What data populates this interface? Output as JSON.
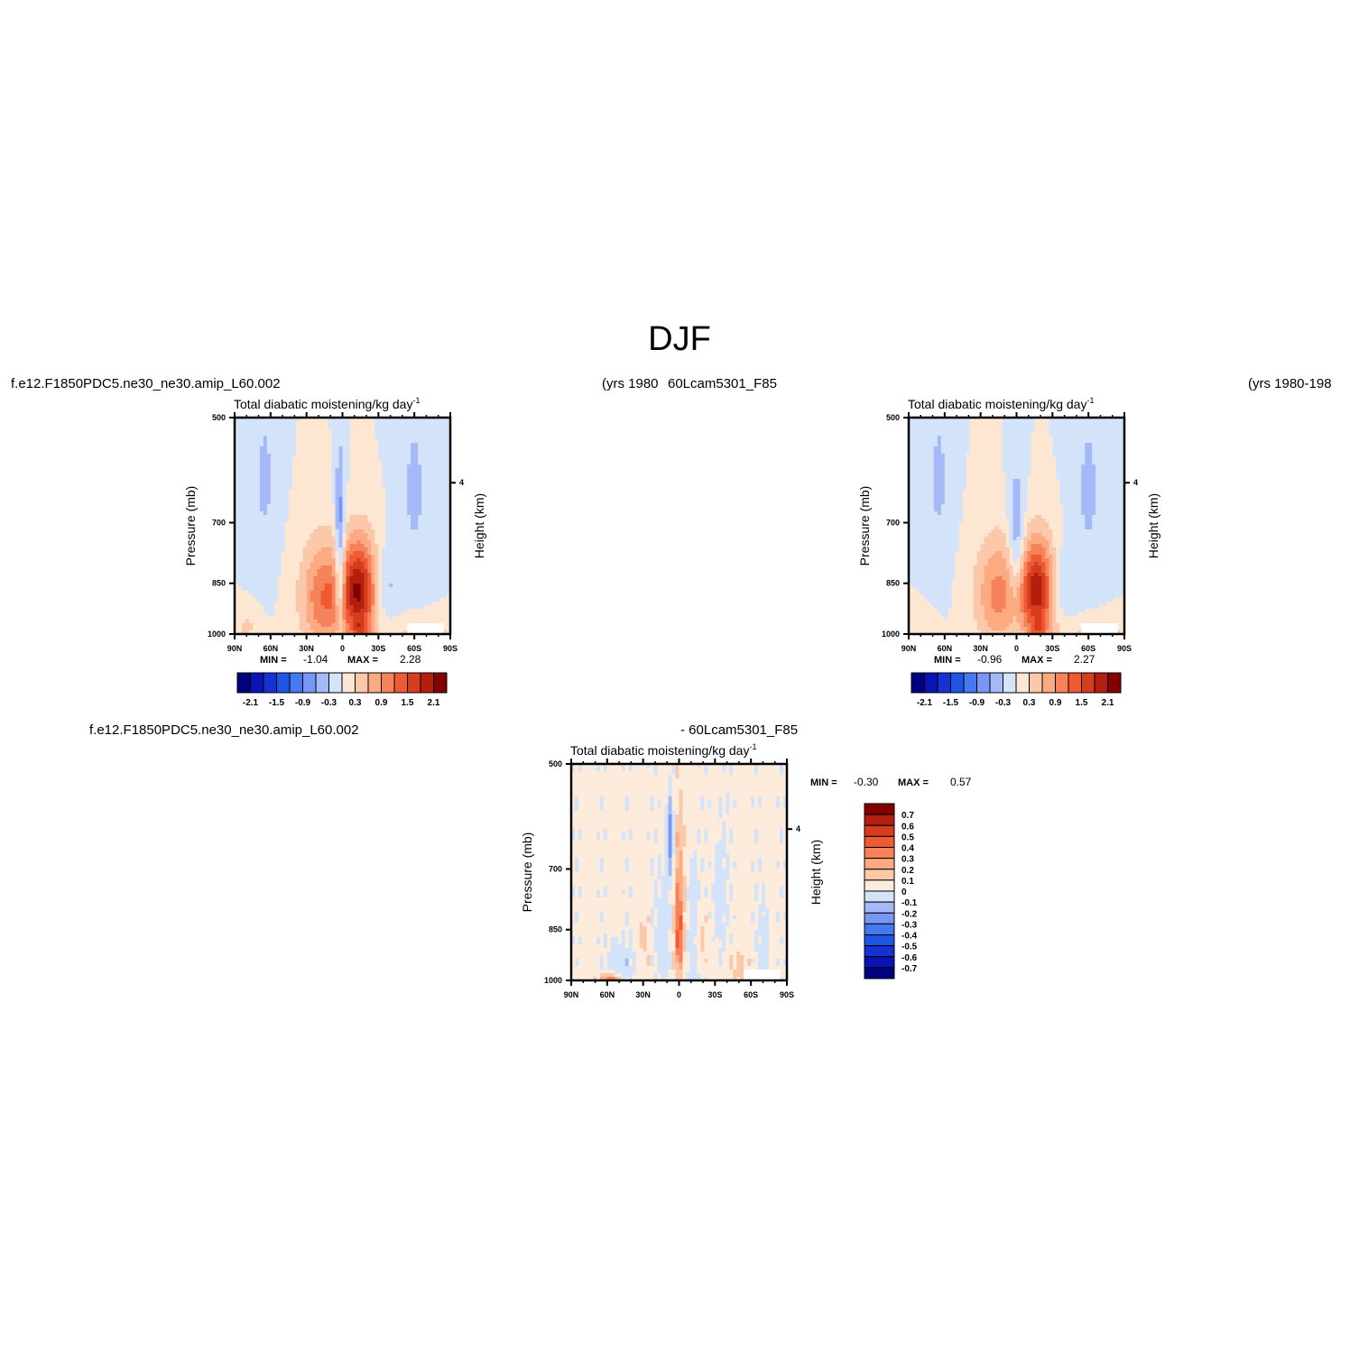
{
  "page": {
    "title": "DJF",
    "top_left_case": "f.e12.F1850PDC5.ne30_ne30.amip_L60.002",
    "top_left_years": "(yrs 1980",
    "top_right_case": "60Lcam5301_F85",
    "top_right_years": "(yrs 1980-198",
    "diff_left_case": "f.e12.F1850PDC5.ne30_ne30.amip_L60.002",
    "diff_right_case": "- 60Lcam5301_F85"
  },
  "colors": {
    "seq": [
      "#000080",
      "#0a14b4",
      "#1433d2",
      "#1e55e6",
      "#4678f0",
      "#7896f5",
      "#a5b9f8",
      "#d2e3fa",
      "#fde6d2",
      "#fcc8aa",
      "#fbaa82",
      "#f5825a",
      "#ef5a32",
      "#d63c1e",
      "#b41e0f",
      "#820000"
    ],
    "diff": [
      "#000080",
      "#0a14b4",
      "#1433d2",
      "#1e55e6",
      "#4678f0",
      "#7896f5",
      "#a5b9f8",
      "#d2e3fa",
      "#fdebdc",
      "#fcc8aa",
      "#fbaa82",
      "#f5825a",
      "#ef5a32",
      "#d63c1e",
      "#b41e0f",
      "#820000"
    ]
  },
  "chart_data": [
    {
      "id": "p1",
      "type": "heatmap",
      "title": "Total diabatic moistening/kg day",
      "title_sup": "-1",
      "xlabel": "",
      "ylabel": "Pressure (mb)",
      "ylabel_right": "Height (km)",
      "x_ticks": [
        "90N",
        "60N",
        "30N",
        "0",
        "30S",
        "60S",
        "90S"
      ],
      "y_ticks": [
        "500",
        "700",
        "850",
        "1000"
      ],
      "y_ticks_right": [
        "4"
      ],
      "ylim": [
        1000,
        500
      ],
      "min_label": "MIN =",
      "min_value": "-1.04",
      "max_label": "MAX =",
      "max_value": "2.28",
      "levels": [
        -2.1,
        -1.8,
        -1.5,
        -1.2,
        -0.9,
        -0.6,
        -0.3,
        0,
        0.3,
        0.6,
        0.9,
        1.2,
        1.5,
        1.8,
        2.1
      ],
      "colorbar_labels": [
        "-2.1",
        "-1.5",
        "-0.9",
        "-0.3",
        "0.3",
        "0.9",
        "1.5",
        "2.1"
      ],
      "bg": 0.0,
      "features": [
        {
          "lat": -15,
          "p": 870,
          "slat": 11,
          "sp": 95,
          "amp": 2.1
        },
        {
          "lat": -15,
          "p": 985,
          "slat": 5,
          "sp": 20,
          "amp": 0.7
        },
        {
          "lat": -33,
          "p": 860,
          "slat": 9,
          "sp": 70,
          "amp": -0.6
        },
        {
          "lat": 2,
          "p": 760,
          "slat": 3,
          "sp": 140,
          "amp": -1.0
        },
        {
          "lat": 2,
          "p": 880,
          "slat": 3,
          "sp": 50,
          "amp": -0.5
        },
        {
          "lat": 15,
          "p": 890,
          "slat": 14,
          "sp": 110,
          "amp": 1.2
        },
        {
          "lat": -68,
          "p": 990,
          "slat": 20,
          "sp": 35,
          "amp": 0.45
        },
        {
          "lat": -60,
          "p": 630,
          "slat": 10,
          "sp": 160,
          "amp": -0.35
        },
        {
          "lat": 65,
          "p": 610,
          "slat": 8,
          "sp": 140,
          "amp": -0.35
        },
        {
          "lat": 80,
          "p": 980,
          "slat": 8,
          "sp": 40,
          "amp": 0.35
        }
      ]
    },
    {
      "id": "p2",
      "type": "heatmap",
      "title": "Total diabatic moistening/kg day",
      "title_sup": "-1",
      "xlabel": "",
      "ylabel": "Pressure (mb)",
      "ylabel_right": "Height (km)",
      "x_ticks": [
        "90N",
        "60N",
        "30N",
        "0",
        "30S",
        "60S",
        "90S"
      ],
      "y_ticks": [
        "500",
        "700",
        "850",
        "1000"
      ],
      "y_ticks_right": [
        "4"
      ],
      "ylim": [
        1000,
        500
      ],
      "min_label": "MIN =",
      "min_value": "-0.96",
      "max_label": "MAX =",
      "max_value": "2.27",
      "levels": [
        -2.1,
        -1.8,
        -1.5,
        -1.2,
        -0.9,
        -0.6,
        -0.3,
        0,
        0.3,
        0.6,
        0.9,
        1.2,
        1.5,
        1.8,
        2.1
      ],
      "colorbar_labels": [
        "-2.1",
        "-1.5",
        "-0.9",
        "-0.3",
        "0.3",
        "0.9",
        "1.5",
        "2.1"
      ],
      "bg": 0.0,
      "features": [
        {
          "lat": -18,
          "p": 870,
          "slat": 11,
          "sp": 95,
          "amp": 2.0
        },
        {
          "lat": -18,
          "p": 985,
          "slat": 5,
          "sp": 20,
          "amp": 0.7
        },
        {
          "lat": -36,
          "p": 860,
          "slat": 9,
          "sp": 70,
          "amp": -0.55
        },
        {
          "lat": 0,
          "p": 760,
          "slat": 5,
          "sp": 120,
          "amp": -0.8
        },
        {
          "lat": 15,
          "p": 880,
          "slat": 14,
          "sp": 110,
          "amp": 1.0
        },
        {
          "lat": -68,
          "p": 990,
          "slat": 20,
          "sp": 35,
          "amp": 0.45
        },
        {
          "lat": -60,
          "p": 630,
          "slat": 10,
          "sp": 160,
          "amp": -0.35
        },
        {
          "lat": 65,
          "p": 610,
          "slat": 8,
          "sp": 140,
          "amp": -0.35
        },
        {
          "lat": 80,
          "p": 980,
          "slat": 8,
          "sp": 40,
          "amp": 0.3
        }
      ]
    },
    {
      "id": "p3",
      "type": "heatmap",
      "title": "Total diabatic moistening/kg day",
      "title_sup": "-1",
      "xlabel": "",
      "ylabel": "Pressure (mb)",
      "ylabel_right": "Height (km)",
      "x_ticks": [
        "90N",
        "60N",
        "30N",
        "0",
        "30S",
        "60S",
        "90S"
      ],
      "y_ticks": [
        "500",
        "700",
        "850",
        "1000"
      ],
      "y_ticks_right": [
        "4"
      ],
      "ylim": [
        1000,
        500
      ],
      "min_label": "MIN =",
      "min_value": "-0.30",
      "max_label": "MAX =",
      "max_value": "0.57",
      "levels": [
        -0.7,
        -0.6,
        -0.5,
        -0.4,
        -0.3,
        -0.2,
        -0.1,
        0,
        0.1,
        0.2,
        0.3,
        0.4,
        0.5,
        0.6,
        0.7
      ],
      "colorbar_labels": [
        "0.7",
        "0.6",
        "0.5",
        "0.4",
        "0.3",
        "0.2",
        "0.1",
        "0",
        "-0.1",
        "-0.2",
        "-0.3",
        "-0.4",
        "-0.5",
        "-0.6",
        "-0.7"
      ],
      "bg": 0.04,
      "features": [
        {
          "lat": 0,
          "p": 800,
          "slat": 3,
          "sp": 140,
          "amp": 0.3
        },
        {
          "lat": 0,
          "p": 880,
          "slat": 2,
          "sp": 50,
          "amp": 0.2
        },
        {
          "lat": 7,
          "p": 630,
          "slat": 2,
          "sp": 60,
          "amp": -0.3
        },
        {
          "lat": 14,
          "p": 850,
          "slat": 6,
          "sp": 110,
          "amp": -0.1
        },
        {
          "lat": -12,
          "p": 870,
          "slat": 4,
          "sp": 150,
          "amp": -0.1
        },
        {
          "lat": 30,
          "p": 900,
          "slat": 5,
          "sp": 80,
          "amp": 0.1
        },
        {
          "lat": 58,
          "p": 995,
          "slat": 6,
          "sp": 10,
          "amp": 0.35
        },
        {
          "lat": 45,
          "p": 940,
          "slat": 10,
          "sp": 60,
          "amp": -0.1
        },
        {
          "lat": -35,
          "p": 760,
          "slat": 4,
          "sp": 120,
          "amp": -0.1
        },
        {
          "lat": -50,
          "p": 960,
          "slat": 6,
          "sp": 40,
          "amp": 0.1
        },
        {
          "lat": -70,
          "p": 900,
          "slat": 4,
          "sp": 100,
          "amp": -0.1
        },
        {
          "lat": -18,
          "p": 880,
          "slat": 3,
          "sp": 50,
          "amp": 0.12
        }
      ]
    }
  ]
}
